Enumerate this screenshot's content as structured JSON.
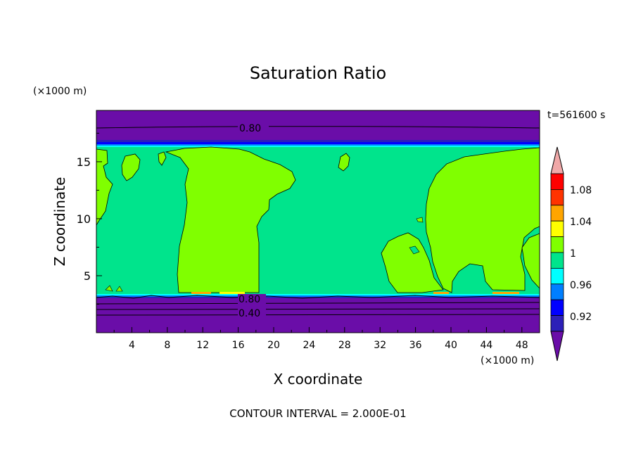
{
  "chart_data": {
    "type": "heatmap",
    "title": "Saturation Ratio",
    "xlabel": "X coordinate",
    "ylabel": "Z coordinate",
    "x_unit": "(×1000 m)",
    "y_unit": "(×1000 m)",
    "time_label": "t=561600 s",
    "footer": "CONTOUR INTERVAL = 2.000E-01",
    "xlim": [
      0,
      50
    ],
    "ylim": [
      0,
      19.5
    ],
    "x_ticks": [
      "4",
      "8",
      "12",
      "16",
      "20",
      "24",
      "28",
      "32",
      "36",
      "40",
      "44",
      "48"
    ],
    "y_ticks": [
      "5",
      "10",
      "15"
    ],
    "contour_labels": [
      "0.80",
      "0.80",
      "0.40"
    ],
    "colorbar": {
      "tick_labels": [
        "1.08",
        "1.04",
        "1",
        "0.96",
        "0.92"
      ],
      "levels": [
        0.9,
        0.92,
        0.94,
        0.96,
        0.98,
        1.0,
        1.02,
        1.04,
        1.06,
        1.08,
        1.1
      ],
      "colors": [
        "#6a0da8",
        "#2c20b8",
        "#0000ff",
        "#007fff",
        "#00ffff",
        "#00e48c",
        "#80ff00",
        "#ffff00",
        "#ffa500",
        "#ff3300",
        "#ff0000",
        "#f0a8a8"
      ]
    },
    "grid": false
  }
}
